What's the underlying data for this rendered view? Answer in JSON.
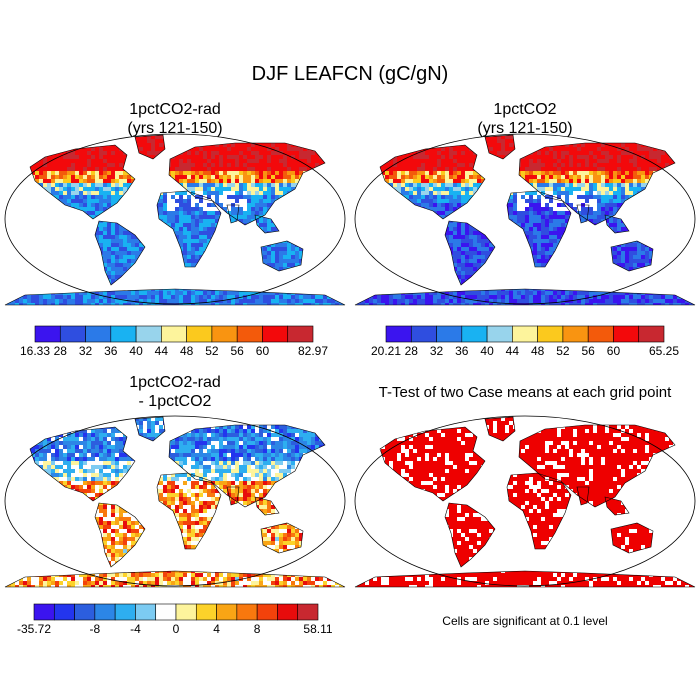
{
  "title": "DJF LEAFCN (gC/gN)",
  "panels": [
    {
      "id": "top-left",
      "title_line1": "1pctCO2-rad",
      "title_line2": "(yrs 121-150)",
      "colorbar": {
        "colors": [
          "#3b14ef",
          "#2f4ee0",
          "#2b7ae8",
          "#19b2f2",
          "#98d4ec",
          "#fdf49c",
          "#fbc91e",
          "#f99411",
          "#f35a0b",
          "#f3090b",
          "#c82830"
        ],
        "labels": [
          "16.33",
          "28",
          "32",
          "36",
          "40",
          "44",
          "48",
          "52",
          "56",
          "60",
          "82.97"
        ]
      }
    },
    {
      "id": "top-right",
      "title_line1": "1pctCO2",
      "title_line2": "(yrs 121-150)",
      "colorbar": {
        "colors": [
          "#3b14ef",
          "#2f4ee0",
          "#2b7ae8",
          "#19b2f2",
          "#98d4ec",
          "#fdf49c",
          "#fbc91e",
          "#f99411",
          "#f35a0b",
          "#f3090b",
          "#c82830"
        ],
        "labels": [
          "20.21",
          "28",
          "32",
          "36",
          "40",
          "44",
          "48",
          "52",
          "56",
          "60",
          "65.25"
        ]
      }
    },
    {
      "id": "bottom-left",
      "title_line1": "1pctCO2-rad",
      "title_line2": "- 1pctCO2",
      "colorbar": {
        "colors": [
          "#3b14ef",
          "#2335ee",
          "#2c5ede",
          "#2c86e6",
          "#2eaef0",
          "#7ccbf2",
          "#fefefe",
          "#fdf49c",
          "#fcd22a",
          "#f9a515",
          "#f8780e",
          "#f3420b",
          "#e70c0c",
          "#c82830"
        ],
        "labels": [
          "-35.72",
          "-8",
          "-4",
          "0",
          "4",
          "8",
          "58.11"
        ]
      }
    },
    {
      "id": "bottom-right",
      "title": "T-Test of two Case means at each grid point",
      "note": "Cells are significant at 0.1 level"
    }
  ]
}
